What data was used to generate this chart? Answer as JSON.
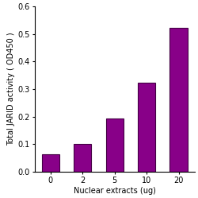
{
  "categories": [
    "0",
    "2",
    "5",
    "10",
    "20"
  ],
  "values": [
    0.063,
    0.101,
    0.192,
    0.322,
    0.522
  ],
  "bar_color": "#880088",
  "bar_edge_color": "#440044",
  "bar_width": 0.55,
  "xlabel": "Nuclear extracts (ug)",
  "ylabel": "Total JARID activity ( OD450 )",
  "ylim": [
    0,
    0.6
  ],
  "yticks": [
    0.0,
    0.1,
    0.2,
    0.3,
    0.4,
    0.5,
    0.6
  ],
  "background_color": "#ffffff",
  "xlabel_fontsize": 7,
  "ylabel_fontsize": 7,
  "tick_fontsize": 7
}
